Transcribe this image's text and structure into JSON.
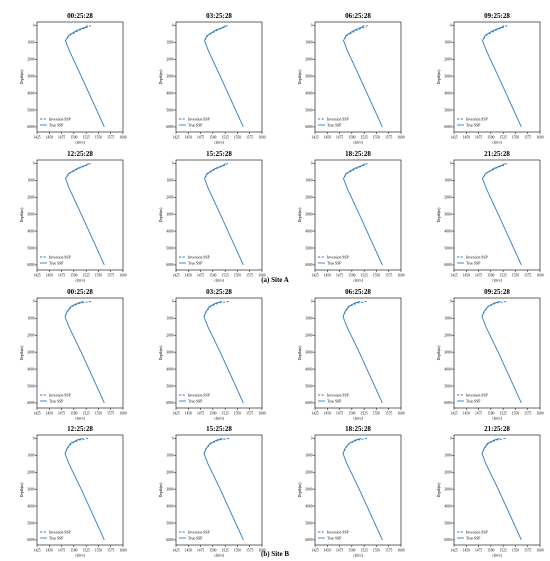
{
  "figure": {
    "caption_a": "(a) Site A",
    "caption_b": "(b) Site B"
  },
  "style": {
    "line_color": "#2e7bbf",
    "axis_color": "#000000"
  },
  "chart_data": {
    "type": "line",
    "xlabel": "c(m/s)",
    "ylabel": "Depth(m)",
    "xlim": [
      1425,
      1600
    ],
    "ylim": [
      6300,
      -200
    ],
    "xticks": [
      1425,
      1450,
      1475,
      1500,
      1525,
      1550,
      1575,
      1600
    ],
    "yticks": [
      0,
      1000,
      2000,
      3000,
      4000,
      5000,
      6000
    ],
    "legend": {
      "position": "bottom-left",
      "entries": [
        "Inversion SSP",
        "True SSP"
      ]
    },
    "grid": false,
    "sites": [
      {
        "name": "Site A",
        "panels": [
          {
            "title": "00:25:28",
            "true_ssp": {
              "depth": [
                0,
                100,
                300,
                600,
                900,
                1500,
                3000,
                6000
              ],
              "c": [
                1528,
                1524,
                1506,
                1489,
                1483,
                1491,
                1515,
                1562
              ]
            },
            "inversion_ssp": {
              "depth": [
                0,
                100,
                300,
                600,
                900
              ],
              "c": [
                1535,
                1528,
                1510,
                1491,
                1483
              ]
            }
          },
          {
            "title": "03:25:28",
            "true_ssp": {
              "depth": [
                0,
                100,
                300,
                600,
                900,
                1500,
                3000,
                6000
              ],
              "c": [
                1526,
                1522,
                1505,
                1488,
                1483,
                1491,
                1515,
                1562
              ]
            },
            "inversion_ssp": {
              "depth": [
                0,
                100,
                300,
                600,
                900
              ],
              "c": [
                1530,
                1525,
                1508,
                1490,
                1483
              ]
            }
          },
          {
            "title": "06:25:28",
            "true_ssp": {
              "depth": [
                0,
                100,
                300,
                600,
                900,
                1500,
                3000,
                6000
              ],
              "c": [
                1525,
                1521,
                1504,
                1488,
                1483,
                1491,
                1515,
                1562
              ]
            },
            "inversion_ssp": {
              "depth": [
                0,
                100,
                300,
                600,
                900
              ],
              "c": [
                1532,
                1526,
                1509,
                1490,
                1483
              ]
            }
          },
          {
            "title": "09:25:28",
            "true_ssp": {
              "depth": [
                0,
                100,
                300,
                600,
                900,
                1500,
                3000,
                6000
              ],
              "c": [
                1527,
                1523,
                1505,
                1488,
                1483,
                1491,
                1515,
                1562
              ]
            },
            "inversion_ssp": {
              "depth": [
                0,
                100,
                300,
                600,
                900
              ],
              "c": [
                1533,
                1527,
                1509,
                1490,
                1483
              ]
            }
          },
          {
            "title": "12:25:28",
            "true_ssp": {
              "depth": [
                0,
                100,
                300,
                600,
                900,
                1500,
                3000,
                6000
              ],
              "c": [
                1530,
                1525,
                1507,
                1489,
                1483,
                1491,
                1515,
                1562
              ]
            },
            "inversion_ssp": {
              "depth": [
                0,
                100,
                300,
                600,
                900
              ],
              "c": [
                1534,
                1527,
                1510,
                1491,
                1483
              ]
            }
          },
          {
            "title": "15:25:28",
            "true_ssp": {
              "depth": [
                0,
                100,
                300,
                600,
                900,
                1500,
                3000,
                6000
              ],
              "c": [
                1526,
                1522,
                1505,
                1488,
                1483,
                1491,
                1515,
                1562
              ]
            },
            "inversion_ssp": {
              "depth": [
                0,
                100,
                300,
                600,
                900
              ],
              "c": [
                1531,
                1525,
                1508,
                1490,
                1483
              ]
            }
          },
          {
            "title": "18:25:28",
            "true_ssp": {
              "depth": [
                0,
                100,
                300,
                600,
                900,
                1500,
                3000,
                6000
              ],
              "c": [
                1527,
                1523,
                1505,
                1488,
                1483,
                1491,
                1515,
                1562
              ]
            },
            "inversion_ssp": {
              "depth": [
                0,
                100,
                300,
                600,
                900
              ],
              "c": [
                1532,
                1526,
                1509,
                1490,
                1483
              ]
            }
          },
          {
            "title": "21:25:28",
            "true_ssp": {
              "depth": [
                0,
                100,
                300,
                600,
                900,
                1500,
                3000,
                6000
              ],
              "c": [
                1528,
                1524,
                1506,
                1489,
                1483,
                1491,
                1515,
                1562
              ]
            },
            "inversion_ssp": {
              "depth": [
                0,
                100,
                300,
                600,
                900
              ],
              "c": [
                1533,
                1527,
                1509,
                1490,
                1483
              ]
            }
          }
        ]
      },
      {
        "name": "Site B",
        "panels": [
          {
            "title": "00:25:28",
            "true_ssp": {
              "depth": [
                0,
                100,
                300,
                600,
                900,
                1500,
                3000,
                6000
              ],
              "c": [
                1520,
                1508,
                1494,
                1486,
                1482,
                1490,
                1515,
                1562
              ]
            },
            "inversion_ssp": {
              "depth": [
                0,
                100,
                300,
                600,
                900
              ],
              "c": [
                1535,
                1514,
                1496,
                1487,
                1482
              ]
            }
          },
          {
            "title": "03:25:28",
            "true_ssp": {
              "depth": [
                0,
                100,
                300,
                600,
                900,
                1500,
                3000,
                6000
              ],
              "c": [
                1518,
                1506,
                1493,
                1486,
                1482,
                1490,
                1515,
                1562
              ]
            },
            "inversion_ssp": {
              "depth": [
                0,
                100,
                300,
                600,
                900
              ],
              "c": [
                1532,
                1512,
                1495,
                1487,
                1482
              ]
            }
          },
          {
            "title": "06:25:28",
            "true_ssp": {
              "depth": [
                0,
                100,
                300,
                600,
                900,
                1500,
                3000,
                6000
              ],
              "c": [
                1517,
                1506,
                1493,
                1486,
                1482,
                1490,
                1515,
                1562
              ]
            },
            "inversion_ssp": {
              "depth": [
                0,
                100,
                300,
                600,
                900
              ],
              "c": [
                1530,
                1511,
                1495,
                1487,
                1482
              ]
            }
          },
          {
            "title": "09:25:28",
            "true_ssp": {
              "depth": [
                0,
                100,
                300,
                600,
                900,
                1500,
                3000,
                6000
              ],
              "c": [
                1519,
                1507,
                1494,
                1486,
                1482,
                1490,
                1515,
                1562
              ]
            },
            "inversion_ssp": {
              "depth": [
                0,
                100,
                300,
                600,
                900
              ],
              "c": [
                1531,
                1511,
                1495,
                1487,
                1482
              ]
            }
          },
          {
            "title": "12:25:28",
            "true_ssp": {
              "depth": [
                0,
                100,
                300,
                600,
                900,
                1500,
                3000,
                6000
              ],
              "c": [
                1518,
                1506,
                1493,
                1486,
                1482,
                1490,
                1515,
                1562
              ]
            },
            "inversion_ssp": {
              "depth": [
                0,
                100,
                300,
                600,
                900
              ],
              "c": [
                1529,
                1510,
                1495,
                1487,
                1482
              ]
            }
          },
          {
            "title": "15:25:28",
            "true_ssp": {
              "depth": [
                0,
                100,
                300,
                600,
                900,
                1500,
                3000,
                6000
              ],
              "c": [
                1520,
                1508,
                1494,
                1486,
                1482,
                1490,
                1515,
                1562
              ]
            },
            "inversion_ssp": {
              "depth": [
                0,
                100,
                300,
                600,
                900
              ],
              "c": [
                1533,
                1513,
                1496,
                1487,
                1482
              ]
            }
          },
          {
            "title": "18:25:28",
            "true_ssp": {
              "depth": [
                0,
                100,
                300,
                600,
                900,
                1500,
                3000,
                6000
              ],
              "c": [
                1519,
                1507,
                1494,
                1486,
                1482,
                1490,
                1515,
                1562
              ]
            },
            "inversion_ssp": {
              "depth": [
                0,
                100,
                300,
                600,
                900
              ],
              "c": [
                1531,
                1512,
                1495,
                1487,
                1482
              ]
            }
          },
          {
            "title": "21:25:28",
            "true_ssp": {
              "depth": [
                0,
                100,
                300,
                600,
                900,
                1500,
                3000,
                6000
              ],
              "c": [
                1518,
                1507,
                1493,
                1486,
                1482,
                1490,
                1515,
                1562
              ]
            },
            "inversion_ssp": {
              "depth": [
                0,
                100,
                300,
                600,
                900
              ],
              "c": [
                1530,
                1511,
                1495,
                1487,
                1482
              ]
            }
          }
        ]
      }
    ]
  }
}
